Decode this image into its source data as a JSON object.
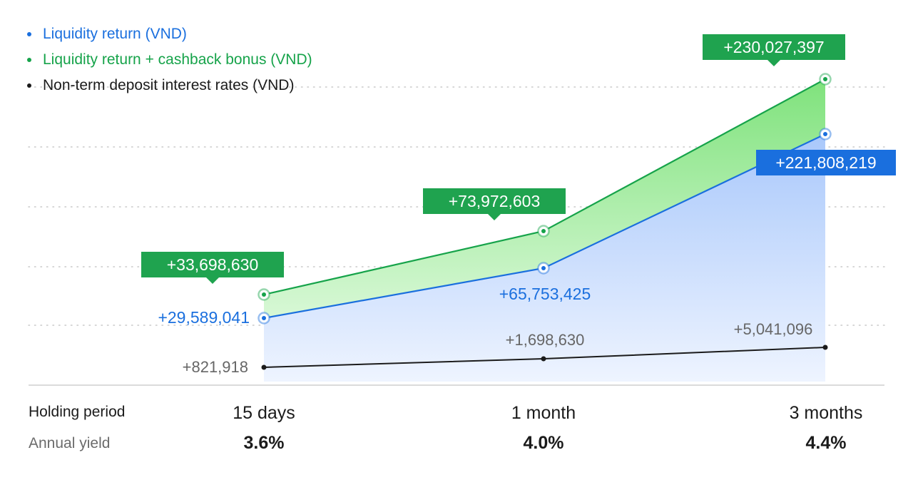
{
  "colors": {
    "blue": "#1a6fde",
    "green": "#16a34a",
    "green_label_bg": "#1fa34f",
    "black": "#1b1b1b",
    "gray_text": "#666666",
    "green_fill": "#8ee88c",
    "blue_fill": "#b7d2fb"
  },
  "legend": [
    {
      "label": "Liquidity return (VND)",
      "color": "#1a6fde"
    },
    {
      "label": "Liquidity return + cashback bonus (VND)",
      "color": "#16a34a"
    },
    {
      "label": "Non-term deposit interest rates (VND)",
      "color": "#1b1b1b"
    }
  ],
  "table": {
    "period_label": "Holding period",
    "yield_label": "Annual yield",
    "periods": [
      "15 days",
      "1 month",
      "3 months"
    ],
    "yields": [
      "3.6%",
      "4.0%",
      "4.4%"
    ]
  },
  "chart_data": {
    "type": "area",
    "categories": [
      "15 days",
      "1 month",
      "3 months"
    ],
    "grid": true,
    "legend_position": "top-left",
    "series": [
      {
        "name": "Liquidity return + cashback bonus (VND)",
        "values": [
          33698630,
          73972603,
          230027397
        ],
        "labels": [
          "+33,698,630",
          "+73,972,603",
          "+230,027,397"
        ],
        "color": "#16a34a"
      },
      {
        "name": "Liquidity return (VND)",
        "values": [
          29589041,
          65753425,
          221808219
        ],
        "labels": [
          "+29,589,041",
          "+65,753,425",
          "+221,808,219"
        ],
        "color": "#1a6fde"
      },
      {
        "name": "Non-term deposit interest rates (VND)",
        "values": [
          821918,
          1698630,
          5041096
        ],
        "labels": [
          "+821,918",
          "+1,698,630",
          "+5,041,096"
        ],
        "color": "#1b1b1b"
      }
    ]
  }
}
